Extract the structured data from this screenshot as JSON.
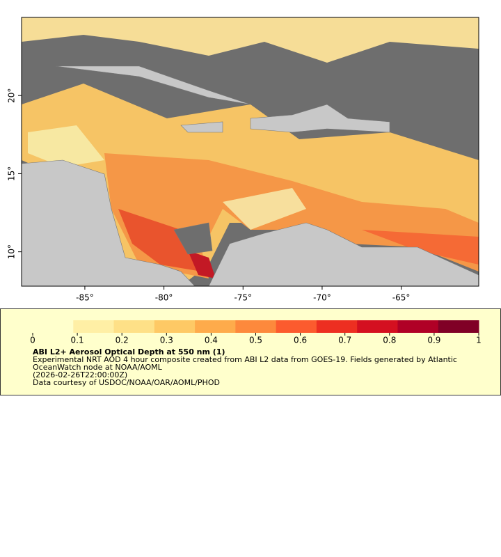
{
  "map": {
    "xlim": [
      -89,
      -60.1
    ],
    "ylim": [
      7.8,
      25
    ],
    "xticks": [
      {
        "value": -85,
        "label": "-85°"
      },
      {
        "value": -80,
        "label": "-80°"
      },
      {
        "value": -75,
        "label": "-75°"
      },
      {
        "value": -70,
        "label": "-70°"
      },
      {
        "value": -65,
        "label": "-65°"
      }
    ],
    "yticks": [
      {
        "value": 10,
        "label": "10°"
      },
      {
        "value": 15,
        "label": "15°"
      },
      {
        "value": 20,
        "label": "20°"
      }
    ]
  },
  "colorbar": {
    "range": [
      0,
      1
    ],
    "ticks": [
      0,
      0.1,
      0.2,
      0.3,
      0.4,
      0.5,
      0.6,
      0.7,
      0.8,
      0.9,
      1
    ],
    "colors": [
      "#ffffcc",
      "#ffefa5",
      "#fee087",
      "#fec965",
      "#feab4b",
      "#fd893c",
      "#fc5b2e",
      "#ed2f21",
      "#d41020",
      "#b00026",
      "#800026"
    ]
  },
  "caption": {
    "title": "ABI L2+ Aerosol Optical Depth at 550 nm (1)",
    "description": "Experimental NRT AOD 4 hour composite created from ABI L2 data from GOES-19. Fields generated by Atlantic OceanWatch node at NOAA/AOML",
    "timestamp": "(2026-02-26T22:00:00Z)",
    "credit": "Data courtesy of USDOC/NOAA/OAR/AOML/PHOD"
  }
}
